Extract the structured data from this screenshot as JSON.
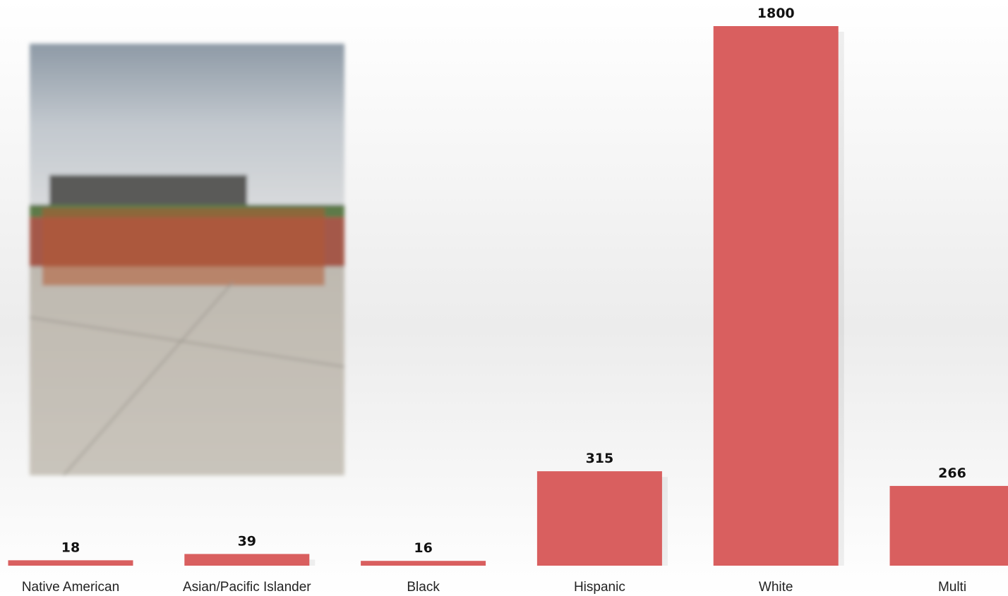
{
  "chart_data": {
    "type": "bar",
    "categories": [
      "Native American",
      "Asian/Pacific Islander",
      "Black",
      "Hispanic",
      "White",
      "Multi"
    ],
    "values": [
      18,
      39,
      16,
      315,
      1800,
      266
    ],
    "color": "#d95f5f"
  }
}
